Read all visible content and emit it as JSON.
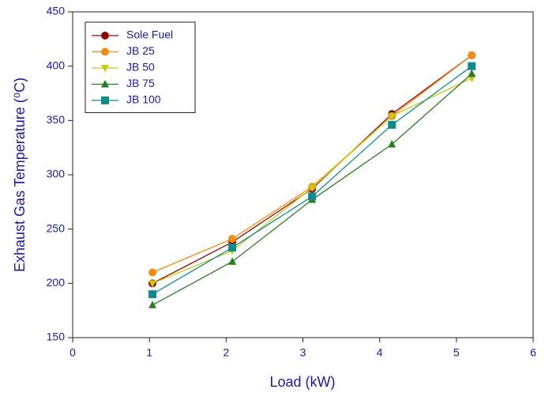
{
  "chart_data": {
    "type": "line",
    "xlabel": "Load (kW)",
    "ylabel": "Exhaust Gas Temperature (⁰C)",
    "x": [
      1.04,
      2.08,
      3.12,
      4.16,
      5.2
    ],
    "series": [
      {
        "name": "Sole Fuel",
        "color": "#8b0a0a",
        "marker": "circle",
        "values": [
          200,
          238,
          287,
          356,
          410
        ]
      },
      {
        "name": "JB 25",
        "color": "#f08c14",
        "marker": "circle",
        "values": [
          210,
          241,
          289,
          354,
          410
        ]
      },
      {
        "name": "JB 50",
        "color": "#c8c814",
        "marker": "triangle-down",
        "values": [
          200,
          230,
          288,
          354,
          389
        ]
      },
      {
        "name": "JB 75",
        "color": "#2a7d1e",
        "marker": "triangle-up",
        "values": [
          180,
          220,
          277,
          328,
          393
        ]
      },
      {
        "name": "JB 100",
        "color": "#138a8a",
        "marker": "square",
        "values": [
          190,
          233,
          280,
          346,
          400
        ]
      }
    ],
    "xlim": [
      0,
      6
    ],
    "xticks": [
      0,
      1,
      2,
      3,
      4,
      5,
      6
    ],
    "ylim": [
      150,
      450
    ],
    "yticks": [
      150,
      200,
      250,
      300,
      350,
      400,
      450
    ],
    "grid": false,
    "legend": "upper left"
  }
}
